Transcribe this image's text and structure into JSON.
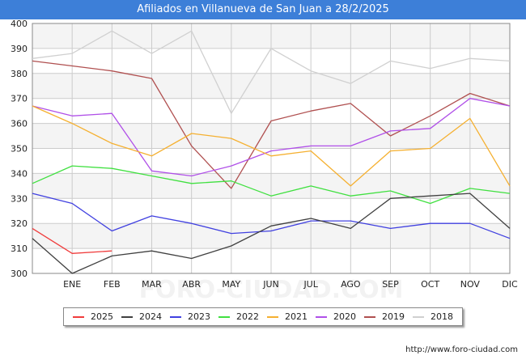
{
  "header": {
    "title": "Afiliados en Villanueva de San Juan a 28/2/2025"
  },
  "credit": "http://www.foro-ciudad.com",
  "watermark": "FORO-CIUDAD.COM",
  "chart_data": {
    "type": "line",
    "title": "Afiliados en Villanueva de San Juan a 28/2/2025",
    "xlabel": "",
    "ylabel": "",
    "categories": [
      "",
      "ENE",
      "FEB",
      "MAR",
      "ABR",
      "MAY",
      "JUN",
      "JUL",
      "AGO",
      "SEP",
      "OCT",
      "NOV",
      "DIC"
    ],
    "ylim": [
      300,
      400
    ],
    "yticks": [
      300,
      310,
      320,
      330,
      340,
      350,
      360,
      370,
      380,
      390,
      400
    ],
    "grid": true,
    "legend_position": "bottom",
    "series": [
      {
        "name": "2025",
        "color": "#f03c3c",
        "values": [
          318,
          308,
          309,
          null,
          null,
          null,
          null,
          null,
          null,
          null,
          null,
          null,
          null
        ]
      },
      {
        "name": "2024",
        "color": "#404040",
        "values": [
          314,
          300,
          307,
          309,
          306,
          311,
          319,
          322,
          318,
          330,
          331,
          332,
          318
        ]
      },
      {
        "name": "2023",
        "color": "#4040e0",
        "values": [
          332,
          328,
          317,
          323,
          320,
          316,
          317,
          321,
          321,
          318,
          320,
          320,
          314
        ]
      },
      {
        "name": "2022",
        "color": "#40e040",
        "values": [
          336,
          343,
          342,
          339,
          336,
          337,
          331,
          335,
          331,
          333,
          328,
          334,
          332
        ]
      },
      {
        "name": "2021",
        "color": "#f5b030",
        "values": [
          367,
          360,
          352,
          347,
          356,
          354,
          347,
          349,
          335,
          349,
          350,
          362,
          335
        ]
      },
      {
        "name": "2020",
        "color": "#b050e8",
        "values": [
          367,
          363,
          364,
          341,
          339,
          343,
          349,
          351,
          351,
          357,
          358,
          370,
          367
        ]
      },
      {
        "name": "2019",
        "color": "#b05050",
        "values": [
          385,
          383,
          381,
          378,
          351,
          334,
          361,
          365,
          368,
          355,
          363,
          372,
          367
        ]
      },
      {
        "name": "2018",
        "color": "#d0d0d0",
        "values": [
          386,
          388,
          397,
          388,
          397,
          364,
          390,
          381,
          376,
          385,
          382,
          386,
          385
        ]
      }
    ]
  }
}
